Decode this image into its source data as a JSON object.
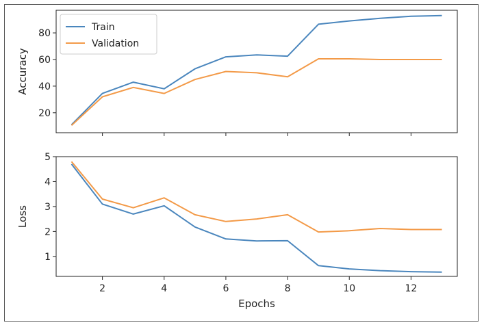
{
  "chart_data": [
    {
      "type": "line",
      "title": "",
      "xlabel": "",
      "ylabel": "Accuracy",
      "xlim": [
        0.5,
        13.5
      ],
      "ylim": [
        5,
        97
      ],
      "xticks": [
        2,
        4,
        6,
        8,
        10,
        12
      ],
      "show_xtick_labels": false,
      "yticks": [
        20,
        40,
        60,
        80
      ],
      "grid": false,
      "legend": "top-left",
      "x": [
        1,
        2,
        3,
        4,
        5,
        6,
        7,
        8,
        9,
        10,
        11,
        12,
        13
      ],
      "series": [
        {
          "name": "Train",
          "color": "#4a86bd",
          "values": [
            11,
            34.5,
            43,
            38,
            53,
            62,
            63.5,
            62.5,
            86.5,
            89,
            91,
            92.5,
            93
          ]
        },
        {
          "name": "Validation",
          "color": "#f39a48",
          "values": [
            10.5,
            32,
            39,
            34.5,
            45,
            51,
            50,
            47,
            60.5,
            60.5,
            60,
            60,
            60
          ]
        }
      ]
    },
    {
      "type": "line",
      "title": "",
      "xlabel": "Epochs",
      "ylabel": "Loss",
      "xlim": [
        0.5,
        13.5
      ],
      "ylim": [
        0.2,
        5
      ],
      "xticks": [
        2,
        4,
        6,
        8,
        10,
        12
      ],
      "xtick_labels": [
        "2",
        "4",
        "6",
        "8",
        "10",
        "12"
      ],
      "show_xtick_labels": true,
      "yticks": [
        1,
        2,
        3,
        4,
        5
      ],
      "grid": false,
      "legend": "none",
      "x": [
        1,
        2,
        3,
        4,
        5,
        6,
        7,
        8,
        9,
        10,
        11,
        12,
        13
      ],
      "series": [
        {
          "name": "",
          "color": "#4a86bd",
          "values": [
            4.7,
            3.1,
            2.7,
            3.03,
            2.18,
            1.7,
            1.62,
            1.63,
            0.63,
            0.5,
            0.43,
            0.39,
            0.37
          ]
        },
        {
          "name": "",
          "color": "#f39a48",
          "values": [
            4.8,
            3.3,
            2.95,
            3.35,
            2.67,
            2.4,
            2.5,
            2.67,
            1.98,
            2.03,
            2.12,
            2.08,
            2.08
          ]
        }
      ]
    }
  ]
}
